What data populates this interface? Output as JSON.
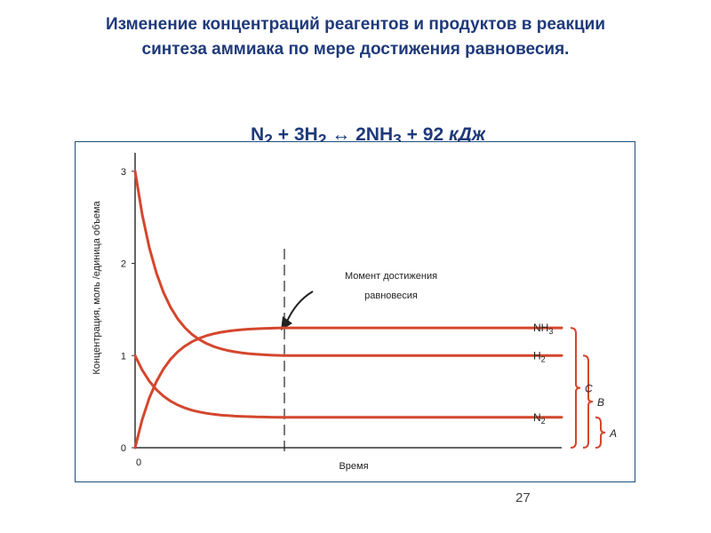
{
  "header": {
    "title_line1": "Изменение концентраций реагентов и продуктов в реакции",
    "title_line2": "синтеза аммиака по мере достижения равновесия."
  },
  "equation": {
    "n2": "N",
    "n2_sub": "2",
    "plus1": " + 3H",
    "h2_sub": "2",
    "arrow": " ↔ ",
    "nh3": "2NH",
    "nh3_sub": "3",
    "energy": " + 92 ",
    "unit": "кДж"
  },
  "page_number": "27",
  "colors": {
    "title": "#1f3a7a",
    "curve": "#d4472e",
    "frame": "#1f4f7a"
  },
  "chart_data": {
    "type": "line",
    "xlabel": "Время",
    "ylabel": "Концентрация, моль /единица объема",
    "x_tick_label": "0",
    "y_ticks": [
      "0",
      "1",
      "2",
      "3"
    ],
    "ylim": [
      0,
      3.2
    ],
    "xlim": [
      0,
      10
    ],
    "equilibrium_time": 3.5,
    "annotation_line1": "Момент достижения",
    "annotation_line2": "равновесия",
    "series": [
      {
        "name": "NH3",
        "label_main": "NH",
        "label_sub": "3",
        "start": 0,
        "end": 1.3
      },
      {
        "name": "H2",
        "label_main": "H",
        "label_sub": "2",
        "start": 3,
        "end": 1.0
      },
      {
        "name": "N2",
        "label_main": "N",
        "label_sub": "2",
        "start": 1,
        "end": 0.33
      }
    ],
    "brackets": [
      {
        "label": "A",
        "from": 0,
        "to": 0.33
      },
      {
        "label": "B",
        "from": 0,
        "to": 1.0
      },
      {
        "label": "C",
        "from": 0,
        "to": 1.3
      }
    ]
  }
}
